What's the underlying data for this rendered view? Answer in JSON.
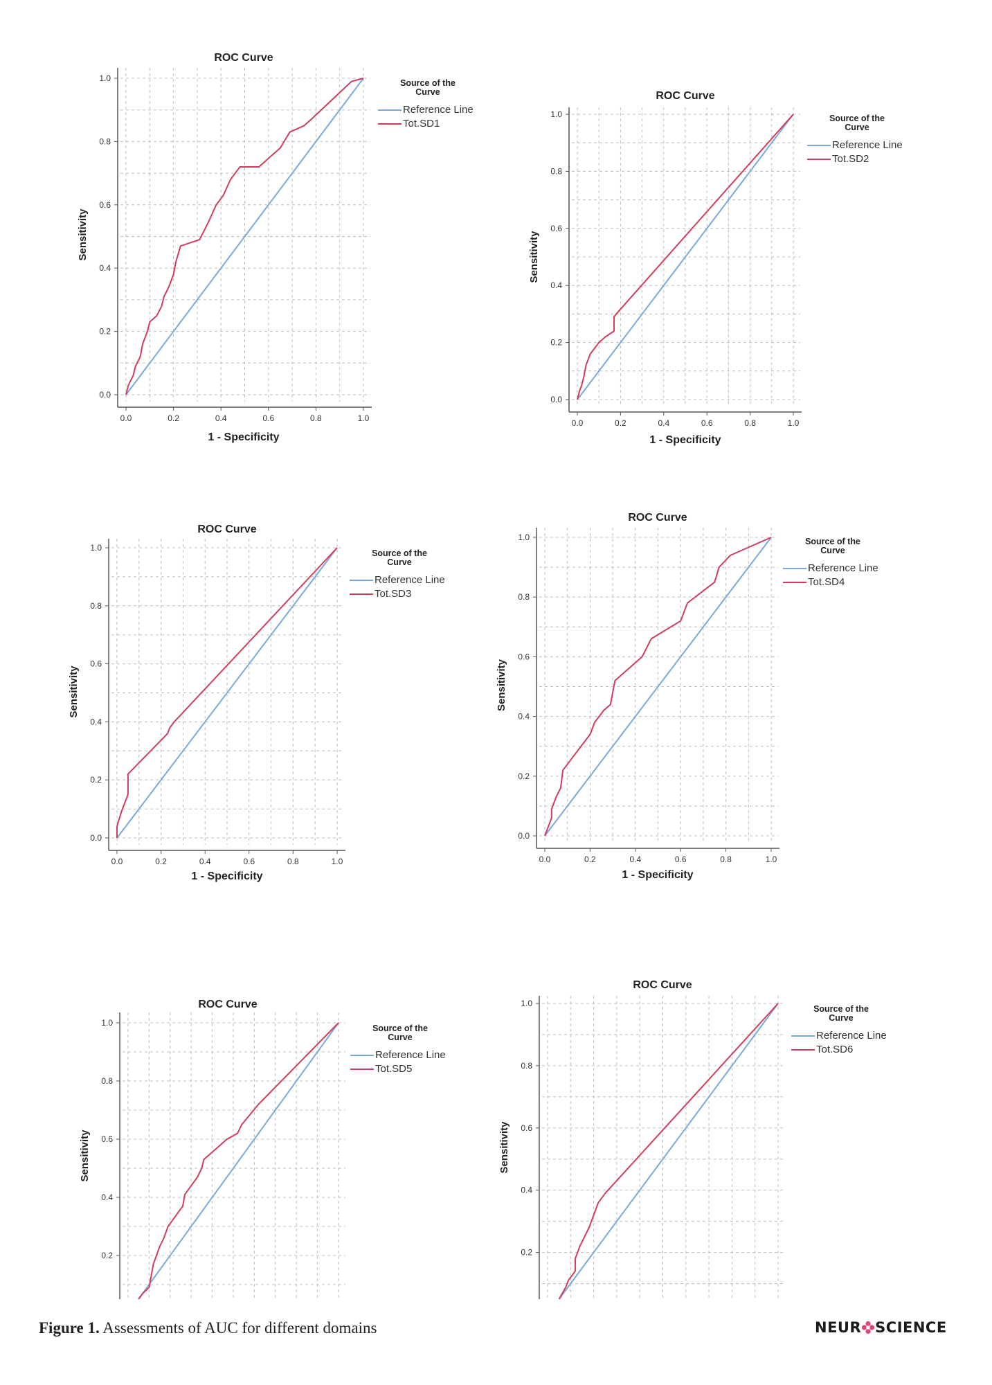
{
  "figure": {
    "caption_label": "Figure 1.",
    "caption_text": "Assessments of AUC for different domains",
    "logo_left": "NEUR",
    "logo_right": "SCIENCE"
  },
  "colors": {
    "reference": "#7aa9d8",
    "curve": "#d03c5c",
    "grid": "#bdbdbd",
    "axis": "#555555"
  },
  "chart_data": [
    {
      "type": "line",
      "title": "ROC Curve",
      "xlabel": "1 - Specificity",
      "ylabel": "Sensitivity",
      "xlim": [
        0,
        1
      ],
      "ylim": [
        0,
        1
      ],
      "grid": true,
      "x_ticks": [
        "0.0",
        "0.2",
        "0.4",
        "0.6",
        "0.8",
        "1.0"
      ],
      "y_ticks": [
        "0.0",
        "0.2",
        "0.4",
        "0.6",
        "0.8",
        "1.0"
      ],
      "legend_title": "Source of the Curve",
      "legend_position": "right",
      "series": [
        {
          "name": "Reference Line",
          "x": [
            0,
            1
          ],
          "y": [
            0,
            1
          ]
        },
        {
          "name": "Tot.SD1",
          "x": [
            0,
            0.01,
            0.03,
            0.04,
            0.06,
            0.07,
            0.09,
            0.1,
            0.13,
            0.15,
            0.16,
            0.18,
            0.2,
            0.21,
            0.23,
            0.31,
            0.35,
            0.38,
            0.41,
            0.44,
            0.48,
            0.56,
            0.65,
            0.69,
            0.75,
            0.78,
            0.95,
            1.0
          ],
          "y": [
            0,
            0.03,
            0.06,
            0.09,
            0.12,
            0.16,
            0.2,
            0.23,
            0.25,
            0.28,
            0.31,
            0.34,
            0.38,
            0.42,
            0.47,
            0.49,
            0.55,
            0.6,
            0.63,
            0.68,
            0.72,
            0.72,
            0.78,
            0.83,
            0.85,
            0.87,
            0.99,
            1.0
          ]
        }
      ]
    },
    {
      "type": "line",
      "title": "ROC Curve",
      "xlabel": "1 - Specificity",
      "ylabel": "Sensitivity",
      "xlim": [
        0,
        1
      ],
      "ylim": [
        0,
        1
      ],
      "grid": true,
      "x_ticks": [
        "0.0",
        "0.2",
        "0.4",
        "0.6",
        "0.8",
        "1.0"
      ],
      "y_ticks": [
        "0.0",
        "0.2",
        "0.4",
        "0.6",
        "0.8",
        "1.0"
      ],
      "legend_title": "Source of the Curve",
      "legend_position": "right",
      "series": [
        {
          "name": "Reference Line",
          "x": [
            0,
            1
          ],
          "y": [
            0,
            1
          ]
        },
        {
          "name": "Tot.SD2",
          "x": [
            0,
            0.01,
            0.02,
            0.03,
            0.04,
            0.05,
            0.06,
            0.08,
            0.1,
            0.13,
            0.17,
            0.17,
            0.18,
            1.0
          ],
          "y": [
            0,
            0.03,
            0.05,
            0.08,
            0.12,
            0.14,
            0.16,
            0.18,
            0.2,
            0.22,
            0.24,
            0.29,
            0.3,
            1.0
          ]
        }
      ]
    },
    {
      "type": "line",
      "title": "ROC Curve",
      "xlabel": "1 - Specificity",
      "ylabel": "Sensitivity",
      "xlim": [
        0,
        1
      ],
      "ylim": [
        0,
        1
      ],
      "grid": true,
      "x_ticks": [
        "0.0",
        "0.2",
        "0.4",
        "0.6",
        "0.8",
        "1.0"
      ],
      "y_ticks": [
        "0.0",
        "0.2",
        "0.4",
        "0.6",
        "0.8",
        "1.0"
      ],
      "legend_title": "Source of the Curve",
      "legend_position": "right",
      "series": [
        {
          "name": "Reference Line",
          "x": [
            0,
            1
          ],
          "y": [
            0,
            1
          ]
        },
        {
          "name": "Tot.SD3",
          "x": [
            0,
            0,
            0.02,
            0.05,
            0.05,
            0.23,
            0.24,
            0.26,
            1.0
          ],
          "y": [
            0,
            0.04,
            0.09,
            0.15,
            0.22,
            0.36,
            0.38,
            0.4,
            1.0
          ]
        }
      ]
    },
    {
      "type": "line",
      "title": "ROC Curve",
      "xlabel": "1 - Specificity",
      "ylabel": "Sensitivity",
      "xlim": [
        0,
        1
      ],
      "ylim": [
        0,
        1
      ],
      "grid": true,
      "x_ticks": [
        "0.0",
        "0.2",
        "0.4",
        "0.6",
        "0.8",
        "1.0"
      ],
      "y_ticks": [
        "0.0",
        "0.2",
        "0.4",
        "0.6",
        "0.8",
        "1.0"
      ],
      "legend_title": "Source of the Curve",
      "legend_position": "right",
      "series": [
        {
          "name": "Reference Line",
          "x": [
            0,
            1
          ],
          "y": [
            0,
            1
          ]
        },
        {
          "name": "Tot.SD4",
          "x": [
            0,
            0.03,
            0.03,
            0.05,
            0.07,
            0.08,
            0.1,
            0.12,
            0.15,
            0.17,
            0.2,
            0.22,
            0.24,
            0.26,
            0.29,
            0.3,
            0.31,
            0.43,
            0.47,
            0.6,
            0.62,
            0.63,
            0.75,
            0.77,
            0.82,
            1.0
          ],
          "y": [
            0,
            0.06,
            0.09,
            0.13,
            0.16,
            0.22,
            0.24,
            0.26,
            0.29,
            0.31,
            0.34,
            0.38,
            0.4,
            0.42,
            0.44,
            0.48,
            0.52,
            0.6,
            0.66,
            0.72,
            0.76,
            0.78,
            0.85,
            0.9,
            0.94,
            1.0
          ]
        }
      ]
    },
    {
      "type": "line",
      "title": "ROC Curve",
      "xlabel": "",
      "ylabel": "Sensitivity",
      "xlim": [
        0,
        1
      ],
      "ylim": [
        0.05,
        1
      ],
      "grid": true,
      "x_ticks": [],
      "y_ticks": [
        "0.2",
        "0.4",
        "0.6",
        "0.8",
        "1.0"
      ],
      "legend_title": "Source of the Curve",
      "legend_position": "right",
      "series": [
        {
          "name": "Reference Line",
          "x": [
            0.05,
            1
          ],
          "y": [
            0.05,
            1
          ]
        },
        {
          "name": "Tot.SD5",
          "x": [
            0.05,
            0.07,
            0.1,
            0.11,
            0.12,
            0.15,
            0.17,
            0.19,
            0.23,
            0.26,
            0.27,
            0.33,
            0.35,
            0.36,
            0.47,
            0.52,
            0.54,
            0.62,
            1.0
          ],
          "y": [
            0.05,
            0.07,
            0.09,
            0.13,
            0.17,
            0.23,
            0.26,
            0.3,
            0.34,
            0.37,
            0.41,
            0.47,
            0.5,
            0.53,
            0.6,
            0.62,
            0.65,
            0.72,
            1.0
          ]
        }
      ]
    },
    {
      "type": "line",
      "title": "ROC Curve",
      "xlabel": "",
      "ylabel": "Sensitivity",
      "xlim": [
        0,
        1
      ],
      "ylim": [
        0.05,
        1
      ],
      "grid": true,
      "x_ticks": [],
      "y_ticks": [
        "0.2",
        "0.4",
        "0.6",
        "0.8",
        "1.0"
      ],
      "legend_title": "Source of the Curve",
      "legend_position": "right",
      "series": [
        {
          "name": "Reference Line",
          "x": [
            0.05,
            1
          ],
          "y": [
            0.05,
            1
          ]
        },
        {
          "name": "Tot.SD6",
          "x": [
            0.05,
            0.08,
            0.09,
            0.12,
            0.12,
            0.14,
            0.18,
            0.2,
            0.22,
            0.25,
            1.0
          ],
          "y": [
            0.05,
            0.09,
            0.11,
            0.14,
            0.18,
            0.22,
            0.28,
            0.32,
            0.36,
            0.39,
            1.0
          ]
        }
      ]
    }
  ]
}
